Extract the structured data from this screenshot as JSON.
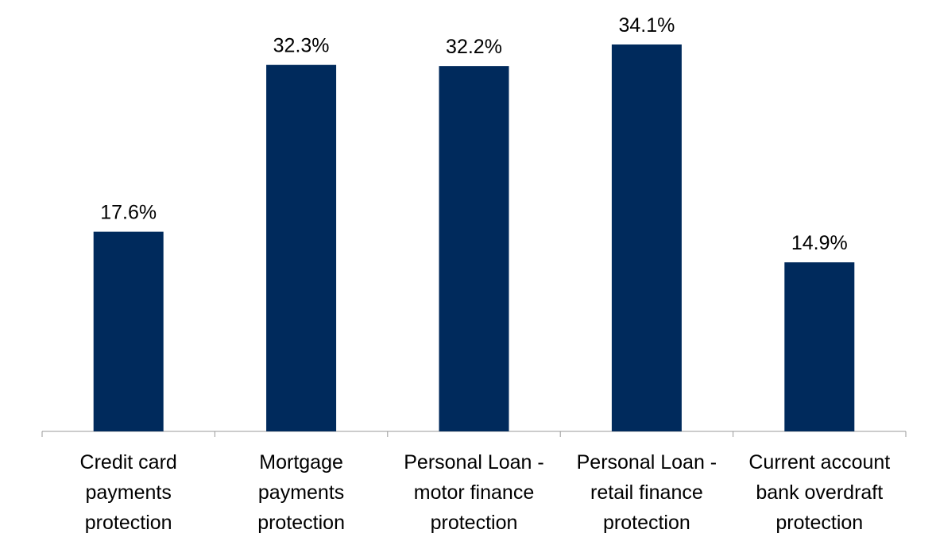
{
  "chart_data": {
    "type": "bar",
    "categories": [
      "Credit card payments protection",
      "Mortgage payments protection",
      "Personal Loan - motor finance protection",
      "Personal Loan - retail finance protection",
      "Current account bank overdraft protection"
    ],
    "values": [
      17.6,
      32.3,
      32.2,
      34.1,
      14.9
    ],
    "value_labels": [
      "17.6%",
      "32.3%",
      "32.2%",
      "34.1%",
      "14.9%"
    ],
    "color": "#002a5c"
  }
}
